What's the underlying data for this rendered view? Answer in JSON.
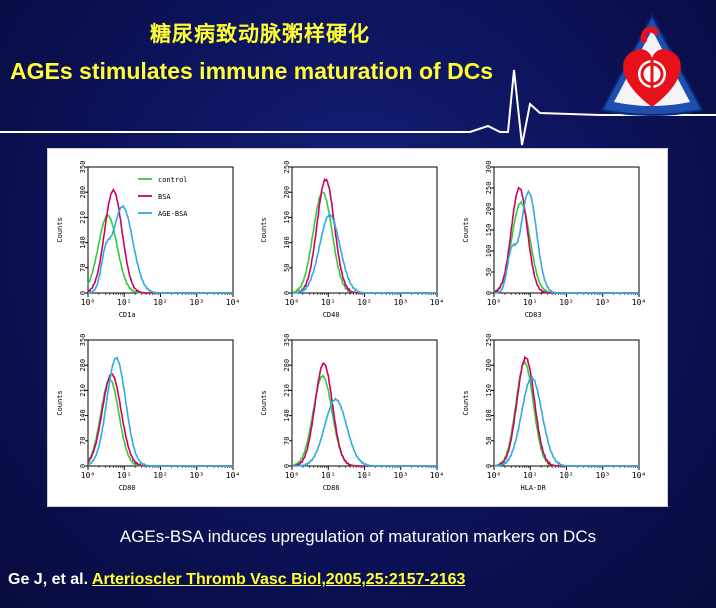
{
  "slide": {
    "title_cn": "糖尿病致动脉粥样硬化",
    "title_en": "AGEs stimulates immune maturation of  DCs",
    "caption": "AGEs-BSA induces upregulation of maturation markers on DCs",
    "reference_authors": "Ge J, et al.",
    "reference_journal": "Arterioscler Thromb Vasc Biol,2005,25:2157-2163"
  },
  "colors": {
    "title": "#ffff33",
    "background": "#0c1258",
    "control": "#33cc33",
    "bsa": "#cc0066",
    "age_bsa": "#33aadd",
    "logo_red": "#e8101a",
    "logo_blue": "#1e4fb0"
  },
  "legend": [
    "control",
    "BSA",
    "AGE-BSA"
  ],
  "chart_data": [
    {
      "type": "line",
      "marker": "CD1a",
      "xscale": "log",
      "xlim": [
        1,
        10000
      ],
      "ylabel": "Counts",
      "yticks": [
        0,
        70,
        140,
        210,
        280,
        350
      ],
      "ylim": [
        0,
        350
      ],
      "xticks": [
        "10⁰",
        "10¹",
        "10²",
        "10³",
        "10⁴"
      ],
      "series": [
        {
          "name": "control",
          "peak_x": 3.5,
          "peak_y": 215,
          "width": 0.26
        },
        {
          "name": "BSA",
          "peak_x": 5,
          "peak_y": 285,
          "width": 0.24
        },
        {
          "name": "AGE-BSA",
          "peak_x": 9,
          "peak_y": 240,
          "width": 0.28,
          "shoulder_x": 3,
          "shoulder_y": 75
        }
      ]
    },
    {
      "type": "line",
      "marker": "CD40",
      "xscale": "log",
      "xlim": [
        1,
        10000
      ],
      "ylabel": "Counts",
      "yticks": [
        0,
        50,
        100,
        150,
        200,
        250
      ],
      "ylim": [
        0,
        250
      ],
      "xticks": [
        "10⁰",
        "10¹",
        "10²",
        "10³",
        "10⁴"
      ],
      "series": [
        {
          "name": "control",
          "peak_x": 7,
          "peak_y": 200,
          "width": 0.26
        },
        {
          "name": "BSA",
          "peak_x": 8.5,
          "peak_y": 225,
          "width": 0.24
        },
        {
          "name": "AGE-BSA",
          "peak_x": 11,
          "peak_y": 155,
          "width": 0.28
        }
      ]
    },
    {
      "type": "line",
      "marker": "CD83",
      "xscale": "log",
      "xlim": [
        1,
        10000
      ],
      "ylabel": "Counts",
      "yticks": [
        0,
        50,
        100,
        150,
        200,
        250,
        300
      ],
      "ylim": [
        0,
        300
      ],
      "xticks": [
        "10⁰",
        "10¹",
        "10²",
        "10³",
        "10⁴"
      ],
      "series": [
        {
          "name": "control",
          "peak_x": 5.5,
          "peak_y": 215,
          "width": 0.25
        },
        {
          "name": "BSA",
          "peak_x": 5,
          "peak_y": 250,
          "width": 0.22
        },
        {
          "name": "AGE-BSA",
          "peak_x": 9,
          "peak_y": 240,
          "width": 0.22,
          "shoulder_x": 3,
          "shoulder_y": 85
        }
      ]
    },
    {
      "type": "line",
      "marker": "CD80",
      "xscale": "log",
      "xlim": [
        1,
        10000
      ],
      "ylabel": "Counts",
      "yticks": [
        0,
        70,
        140,
        210,
        280,
        350
      ],
      "ylim": [
        0,
        350
      ],
      "xticks": [
        "10⁰",
        "10¹",
        "10²",
        "10³",
        "10⁴"
      ],
      "series": [
        {
          "name": "control",
          "peak_x": 4,
          "peak_y": 240,
          "width": 0.25
        },
        {
          "name": "BSA",
          "peak_x": 4.5,
          "peak_y": 255,
          "width": 0.26
        },
        {
          "name": "AGE-BSA",
          "peak_x": 6,
          "peak_y": 300,
          "width": 0.26
        }
      ]
    },
    {
      "type": "line",
      "marker": "CD86",
      "xscale": "log",
      "xlim": [
        1,
        10000
      ],
      "ylabel": "Counts",
      "yticks": [
        0,
        70,
        140,
        210,
        280,
        350
      ],
      "ylim": [
        0,
        350
      ],
      "xticks": [
        "10⁰",
        "10¹",
        "10²",
        "10³",
        "10⁴"
      ],
      "series": [
        {
          "name": "control",
          "peak_x": 7,
          "peak_y": 250,
          "width": 0.26
        },
        {
          "name": "BSA",
          "peak_x": 7.5,
          "peak_y": 285,
          "width": 0.24
        },
        {
          "name": "AGE-BSA",
          "peak_x": 16,
          "peak_y": 185,
          "width": 0.3
        }
      ]
    },
    {
      "type": "line",
      "marker": "HLA-DR",
      "xscale": "log",
      "xlim": [
        1,
        10000
      ],
      "ylabel": "Counts",
      "yticks": [
        0,
        50,
        100,
        150,
        200,
        250
      ],
      "ylim": [
        0,
        250
      ],
      "xticks": [
        "10⁰",
        "10¹",
        "10²",
        "10³",
        "10⁴"
      ],
      "series": [
        {
          "name": "control",
          "peak_x": 7,
          "peak_y": 205,
          "width": 0.24
        },
        {
          "name": "BSA",
          "peak_x": 7.5,
          "peak_y": 215,
          "width": 0.24
        },
        {
          "name": "AGE-BSA",
          "peak_x": 11,
          "peak_y": 175,
          "width": 0.28
        }
      ]
    }
  ]
}
